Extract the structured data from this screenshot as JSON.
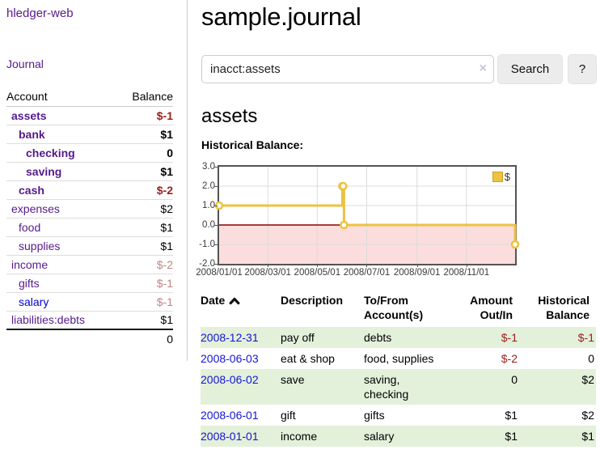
{
  "app": {
    "brand": "hledger-web",
    "nav_journal": "Journal"
  },
  "sidebar": {
    "header": {
      "account": "Account",
      "balance": "Balance"
    },
    "accounts": [
      {
        "name": "assets",
        "depth": 0,
        "bold": true,
        "link": "purple",
        "balance": "$-1",
        "bal_style": "neg-strong"
      },
      {
        "name": "bank",
        "depth": 1,
        "bold": true,
        "link": "purple",
        "balance": "$1",
        "bal_style": "pos-strong"
      },
      {
        "name": "checking",
        "depth": 2,
        "bold": true,
        "link": "purple",
        "balance": "0",
        "bal_style": "pos-strong"
      },
      {
        "name": "saving",
        "depth": 2,
        "bold": true,
        "link": "purple",
        "balance": "$1",
        "bal_style": "pos-strong"
      },
      {
        "name": "cash",
        "depth": 1,
        "bold": true,
        "link": "purple",
        "balance": "$-2",
        "bal_style": "neg-strong"
      },
      {
        "name": "expenses",
        "depth": 0,
        "bold": false,
        "link": "purple",
        "balance": "$2",
        "bal_style": "pos"
      },
      {
        "name": "food",
        "depth": 1,
        "bold": false,
        "link": "purple",
        "balance": "$1",
        "bal_style": "pos"
      },
      {
        "name": "supplies",
        "depth": 1,
        "bold": false,
        "link": "purple",
        "balance": "$1",
        "bal_style": "pos"
      },
      {
        "name": "income",
        "depth": 0,
        "bold": false,
        "link": "purple",
        "balance": "$-2",
        "bal_style": "neg-soft"
      },
      {
        "name": "gifts",
        "depth": 1,
        "bold": false,
        "link": "purple",
        "balance": "$-1",
        "bal_style": "neg-soft"
      },
      {
        "name": "salary",
        "depth": 1,
        "bold": false,
        "link": "blue",
        "balance": "$-1",
        "bal_style": "neg-soft"
      },
      {
        "name": "liabilities:debts",
        "depth": 0,
        "bold": false,
        "link": "purple",
        "balance": "$1",
        "bal_style": "pos"
      }
    ],
    "total": "0"
  },
  "header": {
    "title": "sample.journal"
  },
  "search": {
    "value": "inacct:assets",
    "clear_icon": "×",
    "button_label": "Search",
    "help_label": "?"
  },
  "account_page": {
    "title": "assets",
    "chart_label": "Historical Balance:"
  },
  "chart_data": {
    "type": "line",
    "step": true,
    "title": "Historical Balance",
    "series": [
      {
        "name": "$",
        "color": "#edc240",
        "points": [
          [
            "2008-01-01",
            1
          ],
          [
            "2008-06-01",
            2
          ],
          [
            "2008-06-02",
            2
          ],
          [
            "2008-06-03",
            0
          ],
          [
            "2008-12-31",
            -1
          ]
        ]
      }
    ],
    "xlim": [
      "2008-01-01",
      "2008-12-31"
    ],
    "ylim": [
      -2,
      3
    ],
    "x_ticks": [
      "2008/01/01",
      "2008/03/01",
      "2008/05/01",
      "2008/07/01",
      "2008/09/01",
      "2008/11/01"
    ],
    "y_ticks": [
      "3.0",
      "2.0",
      "1.0",
      "0.0",
      "-1.0",
      "-2.0"
    ],
    "grid": true,
    "legend": {
      "label": "$",
      "position": "top-right"
    },
    "negative_region_color": "#fbdddd",
    "zero_line_color": "#8b0000",
    "grid_color": "#dcdcdc",
    "border_color": "#545454"
  },
  "register": {
    "columns": [
      {
        "label": "Date",
        "sort": "asc",
        "align": "left"
      },
      {
        "label": "Description",
        "align": "left"
      },
      {
        "label": "To/From Account(s)",
        "align": "left"
      },
      {
        "label": "Amount Out/In",
        "align": "right"
      },
      {
        "label": "Historical Balance",
        "align": "right"
      }
    ],
    "rows": [
      {
        "date": "2008-12-31",
        "description": "pay off",
        "accounts": "debts",
        "amount": "$-1",
        "amount_neg": true,
        "balance": "$-1",
        "balance_neg": true
      },
      {
        "date": "2008-06-03",
        "description": "eat & shop",
        "accounts": "food, supplies",
        "amount": "$-2",
        "amount_neg": true,
        "balance": "0",
        "balance_neg": false
      },
      {
        "date": "2008-06-02",
        "description": "save",
        "accounts": "saving, checking",
        "amount": "0",
        "amount_neg": false,
        "balance": "$2",
        "balance_neg": false
      },
      {
        "date": "2008-06-01",
        "description": "gift",
        "accounts": "gifts",
        "amount": "$1",
        "amount_neg": false,
        "balance": "$2",
        "balance_neg": false
      },
      {
        "date": "2008-01-01",
        "description": "income",
        "accounts": "salary",
        "amount": "$1",
        "amount_neg": false,
        "balance": "$1",
        "balance_neg": false
      }
    ]
  }
}
